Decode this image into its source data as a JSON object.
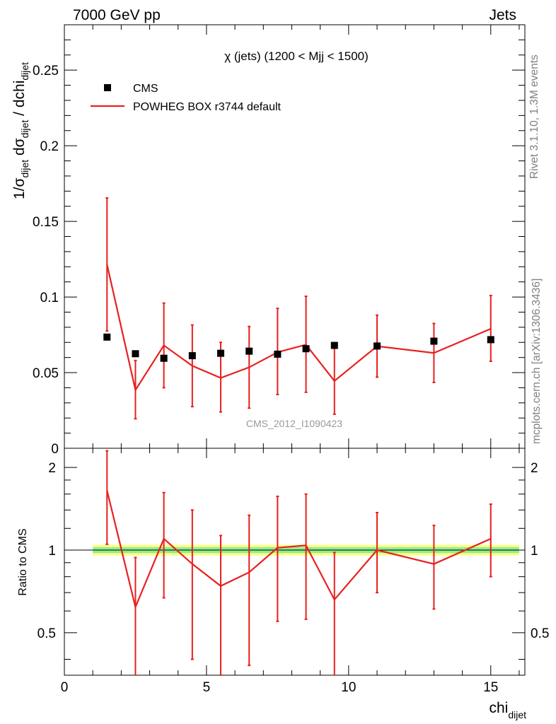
{
  "header": {
    "left": "7000 GeV pp",
    "right": "Jets"
  },
  "side_labels": {
    "rivet": "Rivet 3.1.10,  1.3M events",
    "mcplots": "mcplots.cern.ch [arXiv:1306.3436]"
  },
  "chart_data": [
    {
      "type": "scatter",
      "panel": "main",
      "title": "χ (jets) (1200 < Mjj < 1500)",
      "watermark": "CMS_2012_I1090423",
      "ylabel": {
        "base": "1/σ",
        "sub1": "dijet",
        "mid": " dσ",
        "sub2": "dijet",
        "tail": " / dchi",
        "sub3": "dijet"
      },
      "xlim": [
        0,
        16.2
      ],
      "ylim": [
        0,
        0.28
      ],
      "yticks": [
        0,
        0.05,
        0.1,
        0.15,
        0.2,
        0.25
      ],
      "ytick_labels": [
        "0",
        "0.05",
        "0.1",
        "0.15",
        "0.2",
        "0.25"
      ],
      "legend_position": "top-left",
      "legend": [
        {
          "label": "CMS",
          "marker": "square",
          "color": "#000000"
        },
        {
          "label": "POWHEG BOX r3744 default",
          "marker": "line",
          "color": "#e8201e"
        }
      ],
      "x": [
        1.5,
        2.5,
        3.5,
        4.5,
        5.5,
        6.5,
        7.5,
        8.5,
        9.5,
        11.0,
        13.0,
        15.0
      ],
      "series": [
        {
          "name": "CMS",
          "type": "points",
          "values": [
            0.0735,
            0.0625,
            0.0595,
            0.0612,
            0.0628,
            0.0642,
            0.0622,
            0.0658,
            0.068,
            0.0676,
            0.0708,
            0.0718
          ]
        },
        {
          "name": "POWHEG BOX r3744 default",
          "type": "line",
          "values": [
            0.1215,
            0.0385,
            0.068,
            0.0545,
            0.0465,
            0.0535,
            0.0635,
            0.0685,
            0.0445,
            0.0675,
            0.063,
            0.079
          ],
          "err_low": [
            0.0775,
            0.0195,
            0.04,
            0.0275,
            0.024,
            0.0265,
            0.0355,
            0.037,
            0.0225,
            0.047,
            0.0435,
            0.0575
          ],
          "err_high": [
            0.1655,
            0.058,
            0.096,
            0.0815,
            0.07,
            0.0805,
            0.0925,
            0.1005,
            0.0665,
            0.088,
            0.0825,
            0.101
          ]
        }
      ]
    },
    {
      "type": "line",
      "panel": "ratio",
      "ylabel": "Ratio to CMS",
      "xlabel": {
        "base": "chi",
        "sub": "dijet"
      },
      "xlim": [
        0,
        16.2
      ],
      "ylim": [
        0.35,
        2.35
      ],
      "yticks": [
        0.5,
        1,
        2
      ],
      "ytick_labels": [
        "0.5",
        "1",
        "2"
      ],
      "xticks": [
        0,
        5,
        10,
        15
      ],
      "xtick_labels": [
        "0",
        "5",
        "10",
        "15"
      ],
      "band": {
        "x_start": 1.0,
        "x_end": 16.0,
        "outer": [
          0.955,
          1.045
        ],
        "inner": [
          0.975,
          1.025
        ]
      },
      "x": [
        1.5,
        2.5,
        3.5,
        4.5,
        5.5,
        6.5,
        7.5,
        8.5,
        9.5,
        11.0,
        13.0,
        15.0
      ],
      "series": [
        {
          "name": "POWHEG BOX r3744 default",
          "values": [
            1.65,
            0.62,
            1.1,
            0.89,
            0.74,
            0.83,
            1.02,
            1.04,
            0.66,
            1.0,
            0.89,
            1.1
          ],
          "err_low": [
            1.05,
            0.3,
            0.67,
            0.4,
            0.35,
            0.38,
            0.55,
            0.56,
            0.33,
            0.7,
            0.61,
            0.8
          ],
          "err_high": [
            2.3,
            0.94,
            1.62,
            1.4,
            1.13,
            1.34,
            1.57,
            1.6,
            0.98,
            1.37,
            1.23,
            1.47
          ]
        }
      ]
    }
  ]
}
